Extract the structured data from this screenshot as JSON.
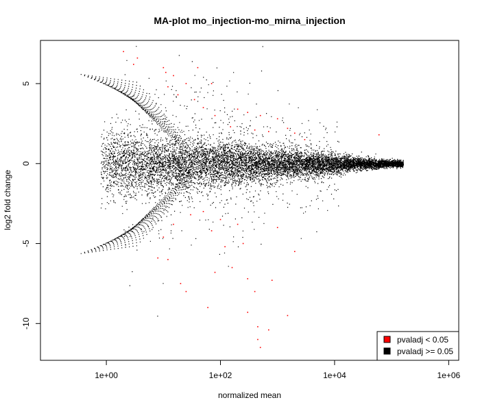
{
  "chart_data": {
    "type": "scatter",
    "title": "MA-plot mo_injection-mo_mirna_injection",
    "xlabel": "normalized mean",
    "ylabel": "log2 fold change",
    "x_scale": "log10",
    "xlim": [
      0.07,
      1500000
    ],
    "ylim": [
      -12.3,
      7.7
    ],
    "x_ticks": [
      {
        "value": 1,
        "label": "1e+00"
      },
      {
        "value": 100,
        "label": "1e+02"
      },
      {
        "value": 10000,
        "label": "1e+04"
      },
      {
        "value": 1000000,
        "label": "1e+06"
      }
    ],
    "y_ticks": [
      {
        "value": 5,
        "label": "5"
      },
      {
        "value": 0,
        "label": "0"
      },
      {
        "value": -5,
        "label": "-5"
      },
      {
        "value": -10,
        "label": "-10"
      }
    ],
    "grid": false,
    "legend_position": "bottom-right",
    "legend": [
      {
        "label": "pvaladj < 0.05",
        "color": "#ff0000"
      },
      {
        "label": "pvaladj >= 0.05",
        "color": "#000000"
      }
    ],
    "series": [
      {
        "name": "pvaladj < 0.05",
        "color": "#ff0000",
        "points": [
          [
            2.0,
            7.0
          ],
          [
            3.5,
            6.6
          ],
          [
            3.0,
            6.2
          ],
          [
            10.0,
            6.0
          ],
          [
            11.0,
            5.7
          ],
          [
            15.0,
            5.5
          ],
          [
            40.0,
            6.0
          ],
          [
            70.0,
            5.0
          ],
          [
            25.0,
            5.0
          ],
          [
            12.0,
            4.8
          ],
          [
            18.0,
            4.3
          ],
          [
            35.0,
            4.0
          ],
          [
            50.0,
            3.5
          ],
          [
            80.0,
            3.0
          ],
          [
            200.0,
            3.4
          ],
          [
            300.0,
            3.2
          ],
          [
            500.0,
            3.0
          ],
          [
            1000.0,
            2.8
          ],
          [
            1500.0,
            2.2
          ],
          [
            2000.0,
            1.9
          ],
          [
            3000.0,
            1.5
          ],
          [
            60000.0,
            1.8
          ],
          [
            700.0,
            2.0
          ],
          [
            400.0,
            2.1
          ],
          [
            150.0,
            2.3
          ],
          [
            1000.0,
            -4.0
          ],
          [
            2000.0,
            -5.5
          ],
          [
            1500.0,
            -9.5
          ],
          [
            300.0,
            -9.3
          ],
          [
            450.0,
            -11.0
          ],
          [
            500.0,
            -11.5
          ],
          [
            700.0,
            -10.4
          ],
          [
            450.0,
            -10.2
          ],
          [
            400.0,
            -8.0
          ],
          [
            800.0,
            -7.3
          ],
          [
            300.0,
            -7.2
          ],
          [
            160.0,
            -6.5
          ],
          [
            80.0,
            -6.8
          ],
          [
            60.0,
            -9.0
          ],
          [
            25.0,
            -8.0
          ],
          [
            20.0,
            -7.5
          ],
          [
            12.0,
            -6.0
          ],
          [
            8.0,
            -5.9
          ],
          [
            10.0,
            -4.6
          ],
          [
            15.0,
            -3.8
          ],
          [
            30.0,
            -3.2
          ],
          [
            50.0,
            -3.0
          ],
          [
            70.0,
            -4.2
          ],
          [
            100.0,
            -3.5
          ],
          [
            200.0,
            -3.8
          ],
          [
            250.0,
            -5.0
          ],
          [
            120.0,
            -5.2
          ]
        ]
      }
    ]
  }
}
